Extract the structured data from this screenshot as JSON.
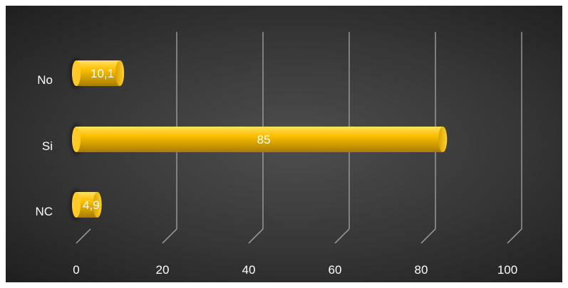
{
  "chart_data": {
    "type": "bar",
    "orientation": "horizontal",
    "style": "3d-cylinder",
    "categories": [
      "No",
      "Si",
      "NC"
    ],
    "values": [
      10.1,
      85,
      4.9
    ],
    "data_labels": [
      "10,1",
      "85",
      "4,9"
    ],
    "x_ticks": [
      "0",
      "20",
      "40",
      "60",
      "80",
      "100"
    ],
    "xlim": [
      0,
      100
    ],
    "grid": true,
    "legend": "none",
    "title": "",
    "xlabel": "",
    "ylabel": ""
  },
  "colors": {
    "background": "#3a3a3a",
    "bar_fill": "#ffc000",
    "bar_shade": "#b08600",
    "bar_highlight": "#ffe066",
    "grid_line": "#a6a6a6",
    "text": "#ffffff"
  }
}
